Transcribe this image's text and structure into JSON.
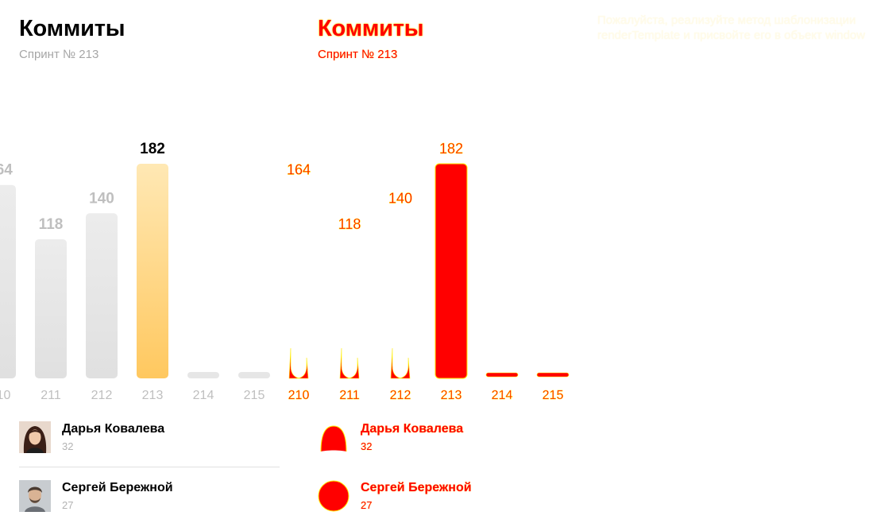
{
  "header": {
    "title": "Коммиты",
    "subtitle": "Спринт № 213"
  },
  "chart_data": {
    "type": "bar",
    "categories": [
      "210",
      "211",
      "212",
      "213",
      "214",
      "215"
    ],
    "values": [
      164,
      118,
      140,
      182,
      0,
      0
    ],
    "value_labels": [
      "164",
      "118",
      "140",
      "182",
      "",
      ""
    ],
    "active_index": 3,
    "ylim": [
      0,
      182
    ],
    "title": "",
    "xlabel": "",
    "ylabel": ""
  },
  "leaders": [
    {
      "name": "Дарья Ковалева",
      "value": "32",
      "avatar": "woman-avatar-icon"
    },
    {
      "name": "Сергей Бережной",
      "value": "27",
      "avatar": "man-avatar-icon"
    }
  ],
  "notice": {
    "text": "Пожалуйста, реализуйте метод шаблонизации renderTemplate и присвойте его в объект window"
  },
  "colors": {
    "active_bar_top": "#ffe8b4",
    "active_bar_bottom": "#ffc85f",
    "inactive_bar": "#e5e5e5",
    "inactive_label": "#bfbfbf",
    "active_label": "#000000",
    "diff_red": "#ff0000",
    "diff_yellow": "#ffee00"
  }
}
